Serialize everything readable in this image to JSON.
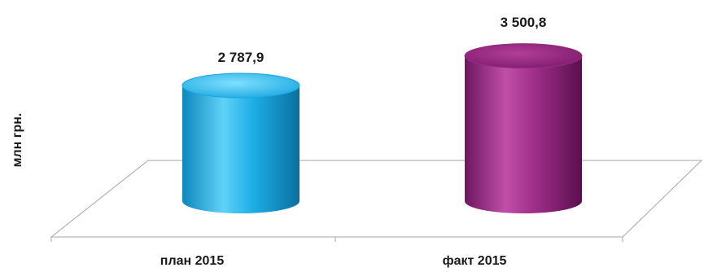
{
  "chart_data": {
    "type": "bar",
    "style": "3d-cylinder",
    "categories": [
      "план 2015",
      "факт 2015"
    ],
    "values": [
      2787.9,
      3500.8
    ],
    "value_labels": [
      "2 787,9",
      "3 500,8"
    ],
    "colors": [
      "#1aa6e0",
      "#9b2a84"
    ],
    "title": "",
    "xlabel": "",
    "ylabel": "млн грн.",
    "ylim": [
      0,
      4000
    ],
    "grid": false,
    "legend": "none"
  }
}
